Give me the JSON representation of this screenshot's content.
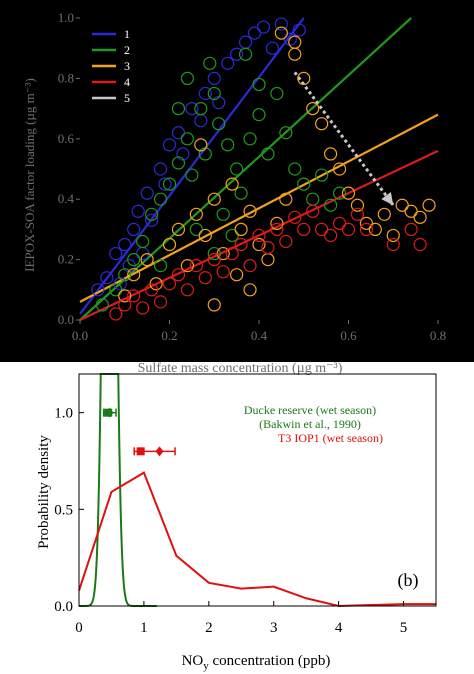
{
  "colors": {
    "top_background": "#000000",
    "top_ink": "#6e6e6e",
    "bottom_background": "#ffffff",
    "bottom_ink": "#000000",
    "line1": "#2a2ad8",
    "line2": "#1f9a1f",
    "line3": "#f4a11e",
    "line4": "#dd1b1b",
    "line5": "#c8c8c8",
    "ducke": "#1a7a1a",
    "t3": "#e01010"
  },
  "chart_data": [
    {
      "type": "scatter",
      "xlabel": "Sulfate mass concentration (µg m⁻³)",
      "ylabel": "IEPOX-SOA factor loading (µg m⁻³)",
      "xlim": [
        0,
        0.8
      ],
      "ylim": [
        0,
        1.0
      ],
      "xticks": [
        "0.0",
        "0.2",
        "0.4",
        "0.6",
        "0.8"
      ],
      "yticks": [
        "0.0",
        "0.2",
        "0.4",
        "0.6",
        "0.8",
        "1.0"
      ],
      "grid": false,
      "legend_position": "top-left",
      "legend": [
        "1",
        "2",
        "3",
        "4",
        "5"
      ],
      "series": [
        {
          "name": "1",
          "color": "#2a2ad8",
          "points": [
            [
              0.04,
              0.1
            ],
            [
              0.06,
              0.14
            ],
            [
              0.08,
              0.22
            ],
            [
              0.09,
              0.12
            ],
            [
              0.1,
              0.25
            ],
            [
              0.12,
              0.3
            ],
            [
              0.13,
              0.36
            ],
            [
              0.15,
              0.42
            ],
            [
              0.16,
              0.33
            ],
            [
              0.18,
              0.5
            ],
            [
              0.19,
              0.45
            ],
            [
              0.2,
              0.58
            ],
            [
              0.22,
              0.62
            ],
            [
              0.23,
              0.55
            ],
            [
              0.25,
              0.7
            ],
            [
              0.27,
              0.66
            ],
            [
              0.28,
              0.75
            ],
            [
              0.3,
              0.8
            ],
            [
              0.31,
              0.72
            ],
            [
              0.33,
              0.85
            ],
            [
              0.35,
              0.88
            ],
            [
              0.37,
              0.92
            ],
            [
              0.39,
              0.95
            ],
            [
              0.41,
              0.97
            ],
            [
              0.43,
              0.9
            ],
            [
              0.45,
              0.98
            ],
            [
              0.47,
              0.93
            ],
            [
              0.49,
              0.96
            ],
            [
              0.14,
              0.22
            ],
            [
              0.11,
              0.18
            ]
          ],
          "fit": [
            [
              0.0,
              0.02
            ],
            [
              0.5,
              1.0
            ]
          ]
        },
        {
          "name": "2",
          "color": "#1f9a1f",
          "points": [
            [
              0.05,
              0.05
            ],
            [
              0.08,
              0.1
            ],
            [
              0.1,
              0.15
            ],
            [
              0.12,
              0.2
            ],
            [
              0.14,
              0.26
            ],
            [
              0.16,
              0.35
            ],
            [
              0.18,
              0.4
            ],
            [
              0.2,
              0.45
            ],
            [
              0.22,
              0.52
            ],
            [
              0.24,
              0.6
            ],
            [
              0.25,
              0.48
            ],
            [
              0.27,
              0.7
            ],
            [
              0.28,
              0.55
            ],
            [
              0.3,
              0.75
            ],
            [
              0.31,
              0.65
            ],
            [
              0.33,
              0.58
            ],
            [
              0.35,
              0.5
            ],
            [
              0.36,
              0.42
            ],
            [
              0.38,
              0.6
            ],
            [
              0.4,
              0.68
            ],
            [
              0.42,
              0.55
            ],
            [
              0.44,
              0.75
            ],
            [
              0.46,
              0.62
            ],
            [
              0.48,
              0.5
            ],
            [
              0.5,
              0.45
            ],
            [
              0.52,
              0.4
            ],
            [
              0.54,
              0.48
            ],
            [
              0.56,
              0.38
            ],
            [
              0.58,
              0.42
            ],
            [
              0.2,
              0.25
            ],
            [
              0.18,
              0.18
            ],
            [
              0.26,
              0.3
            ],
            [
              0.32,
              0.35
            ],
            [
              0.34,
              0.28
            ],
            [
              0.22,
              0.7
            ],
            [
              0.24,
              0.8
            ],
            [
              0.29,
              0.85
            ],
            [
              0.37,
              0.88
            ],
            [
              0.4,
              0.78
            ],
            [
              0.3,
              0.22
            ]
          ],
          "fit": [
            [
              0.0,
              0.0
            ],
            [
              0.74,
              1.0
            ]
          ]
        },
        {
          "name": "3",
          "color": "#f4a11e",
          "points": [
            [
              0.1,
              0.08
            ],
            [
              0.12,
              0.15
            ],
            [
              0.15,
              0.2
            ],
            [
              0.17,
              0.12
            ],
            [
              0.2,
              0.25
            ],
            [
              0.22,
              0.3
            ],
            [
              0.24,
              0.18
            ],
            [
              0.26,
              0.35
            ],
            [
              0.28,
              0.28
            ],
            [
              0.3,
              0.4
            ],
            [
              0.32,
              0.22
            ],
            [
              0.34,
              0.45
            ],
            [
              0.36,
              0.3
            ],
            [
              0.38,
              0.36
            ],
            [
              0.4,
              0.25
            ],
            [
              0.42,
              0.2
            ],
            [
              0.44,
              0.32
            ],
            [
              0.46,
              0.4
            ],
            [
              0.48,
              0.88
            ],
            [
              0.5,
              0.8
            ],
            [
              0.52,
              0.7
            ],
            [
              0.54,
              0.65
            ],
            [
              0.56,
              0.55
            ],
            [
              0.58,
              0.5
            ],
            [
              0.6,
              0.42
            ],
            [
              0.62,
              0.38
            ],
            [
              0.64,
              0.32
            ],
            [
              0.66,
              0.3
            ],
            [
              0.68,
              0.35
            ],
            [
              0.7,
              0.28
            ],
            [
              0.72,
              0.38
            ],
            [
              0.74,
              0.36
            ],
            [
              0.76,
              0.34
            ],
            [
              0.78,
              0.38
            ],
            [
              0.45,
              0.95
            ],
            [
              0.48,
              0.92
            ],
            [
              0.38,
              0.1
            ],
            [
              0.3,
              0.05
            ],
            [
              0.27,
              0.58
            ],
            [
              0.35,
              0.15
            ]
          ],
          "fit": [
            [
              0.0,
              0.06
            ],
            [
              0.8,
              0.68
            ]
          ]
        },
        {
          "name": "4",
          "color": "#dd1b1b",
          "points": [
            [
              0.08,
              0.02
            ],
            [
              0.1,
              0.05
            ],
            [
              0.12,
              0.08
            ],
            [
              0.14,
              0.04
            ],
            [
              0.16,
              0.1
            ],
            [
              0.18,
              0.06
            ],
            [
              0.2,
              0.12
            ],
            [
              0.22,
              0.15
            ],
            [
              0.24,
              0.1
            ],
            [
              0.26,
              0.18
            ],
            [
              0.28,
              0.14
            ],
            [
              0.3,
              0.2
            ],
            [
              0.32,
              0.16
            ],
            [
              0.34,
              0.22
            ],
            [
              0.36,
              0.25
            ],
            [
              0.38,
              0.18
            ],
            [
              0.4,
              0.28
            ],
            [
              0.42,
              0.24
            ],
            [
              0.44,
              0.3
            ],
            [
              0.46,
              0.26
            ],
            [
              0.48,
              0.34
            ],
            [
              0.5,
              0.3
            ],
            [
              0.52,
              0.36
            ],
            [
              0.54,
              0.3
            ],
            [
              0.56,
              0.28
            ],
            [
              0.58,
              0.32
            ],
            [
              0.6,
              0.3
            ],
            [
              0.62,
              0.35
            ],
            [
              0.64,
              0.3
            ],
            [
              0.7,
              0.25
            ],
            [
              0.74,
              0.3
            ],
            [
              0.76,
              0.25
            ]
          ],
          "fit": [
            [
              0.0,
              0.0
            ],
            [
              0.8,
              0.56
            ]
          ]
        },
        {
          "name": "5",
          "color": "#c8c8c8",
          "points": [],
          "arrow": [
            [
              0.48,
              0.82
            ],
            [
              0.7,
              0.38
            ]
          ]
        }
      ]
    },
    {
      "type": "line",
      "panel_label": "(b)",
      "xlabel": "NOy concentration (ppb)",
      "xlabel_main": "NO",
      "xlabel_sub": "y",
      "xlabel_rest": " concentration (ppb)",
      "ylabel": "Probability density",
      "xlim": [
        0,
        5.5
      ],
      "ylim": [
        0,
        1.2
      ],
      "xticks": [
        "0",
        "1",
        "2",
        "3",
        "4",
        "5"
      ],
      "yticks": [
        "0.0",
        "0.5",
        "1.0"
      ],
      "ytick_values": [
        0.0,
        0.5,
        1.0
      ],
      "grid": false,
      "legend_position": "top-right",
      "legend": [
        "Ducke reserve (wet season)",
        "(Bakwin et al., 1990)",
        "T3 IOP1 (wet season)"
      ],
      "series": [
        {
          "name": "Ducke reserve (wet season)",
          "color": "#1a7a1a",
          "type": "gaussian",
          "mean": 0.47,
          "sd": 0.08,
          "peak": 5.0,
          "marker": {
            "mean": 0.47,
            "median": 0.45,
            "low": 0.38,
            "high": 0.57,
            "y": 1.0
          }
        },
        {
          "name": "T3 IOP1 (wet season)",
          "color": "#e01010",
          "x": [
            0,
            0.5,
            1.0,
            1.5,
            2.0,
            2.5,
            3.0,
            3.5,
            4.0,
            4.5,
            5.0,
            5.5
          ],
          "y": [
            0.08,
            0.59,
            0.69,
            0.26,
            0.12,
            0.09,
            0.1,
            0.04,
            0.0,
            0.005,
            0.01,
            0.01
          ],
          "marker": {
            "mean": 1.24,
            "median": 0.95,
            "low": 0.85,
            "high": 1.48,
            "y": 0.8
          }
        }
      ]
    }
  ]
}
